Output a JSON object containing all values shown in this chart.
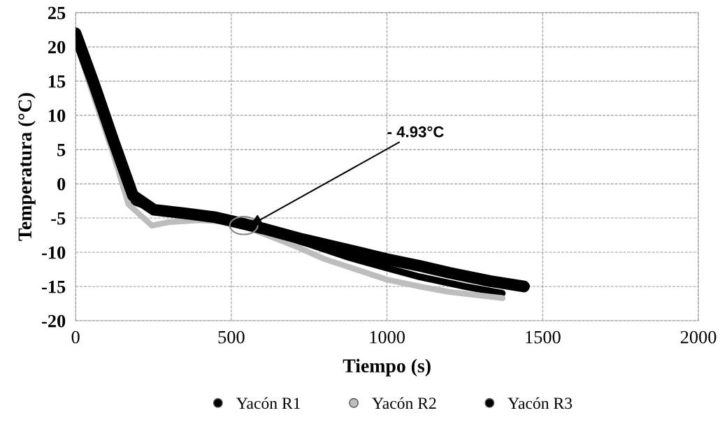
{
  "chart_data": {
    "type": "line",
    "xlabel": "Tiempo (s)",
    "ylabel": "Temperatura (°C)",
    "xlim": [
      0,
      2000
    ],
    "xticks": [
      0,
      500,
      1000,
      1500,
      2000
    ],
    "ylim": [
      -20,
      25
    ],
    "yticks": [
      -20,
      -15,
      -10,
      -5,
      0,
      5,
      10,
      15,
      20,
      25
    ],
    "grid": true,
    "legend": "bottom",
    "annotations": [
      {
        "text": "- 4.93°C",
        "x": 560,
        "y": -6.1
      }
    ],
    "series": [
      {
        "name": "Yacón R1",
        "color": "#000000",
        "x": [
          0,
          60,
          120,
          180,
          270,
          400,
          500,
          600,
          750,
          881,
          1000,
          1106,
          1250,
          1370
        ],
        "values": [
          22,
          14,
          6,
          -2.5,
          -4,
          -4.5,
          -5.5,
          -6.8,
          -8.8,
          -10.8,
          -12.3,
          -13.6,
          -15,
          -16
        ]
      },
      {
        "name": "Yacón R2",
        "color": "#bdbdbd",
        "x": [
          0,
          60,
          120,
          170,
          245,
          300,
          400,
          500,
          560,
          700,
          800,
          881,
          1000,
          1106,
          1200,
          1371
        ],
        "values": [
          21,
          12.5,
          4.5,
          -3,
          -6.1,
          -5.6,
          -5.3,
          -5.6,
          -6.5,
          -9,
          -11,
          -12.2,
          -14,
          -15,
          -15.8,
          -16.7
        ]
      },
      {
        "name": "Yacón R3",
        "color": "#000000",
        "x": [
          0,
          60,
          120,
          184,
          252,
          350,
          450,
          506,
          600,
          730,
          881,
          1000,
          1106,
          1200,
          1330,
          1440
        ],
        "values": [
          22,
          14.5,
          6.5,
          -1.7,
          -3.8,
          -4.3,
          -4.9,
          -5.5,
          -6.5,
          -8.1,
          -9.7,
          -11,
          -12,
          -13,
          -14.2,
          -15
        ]
      }
    ]
  }
}
